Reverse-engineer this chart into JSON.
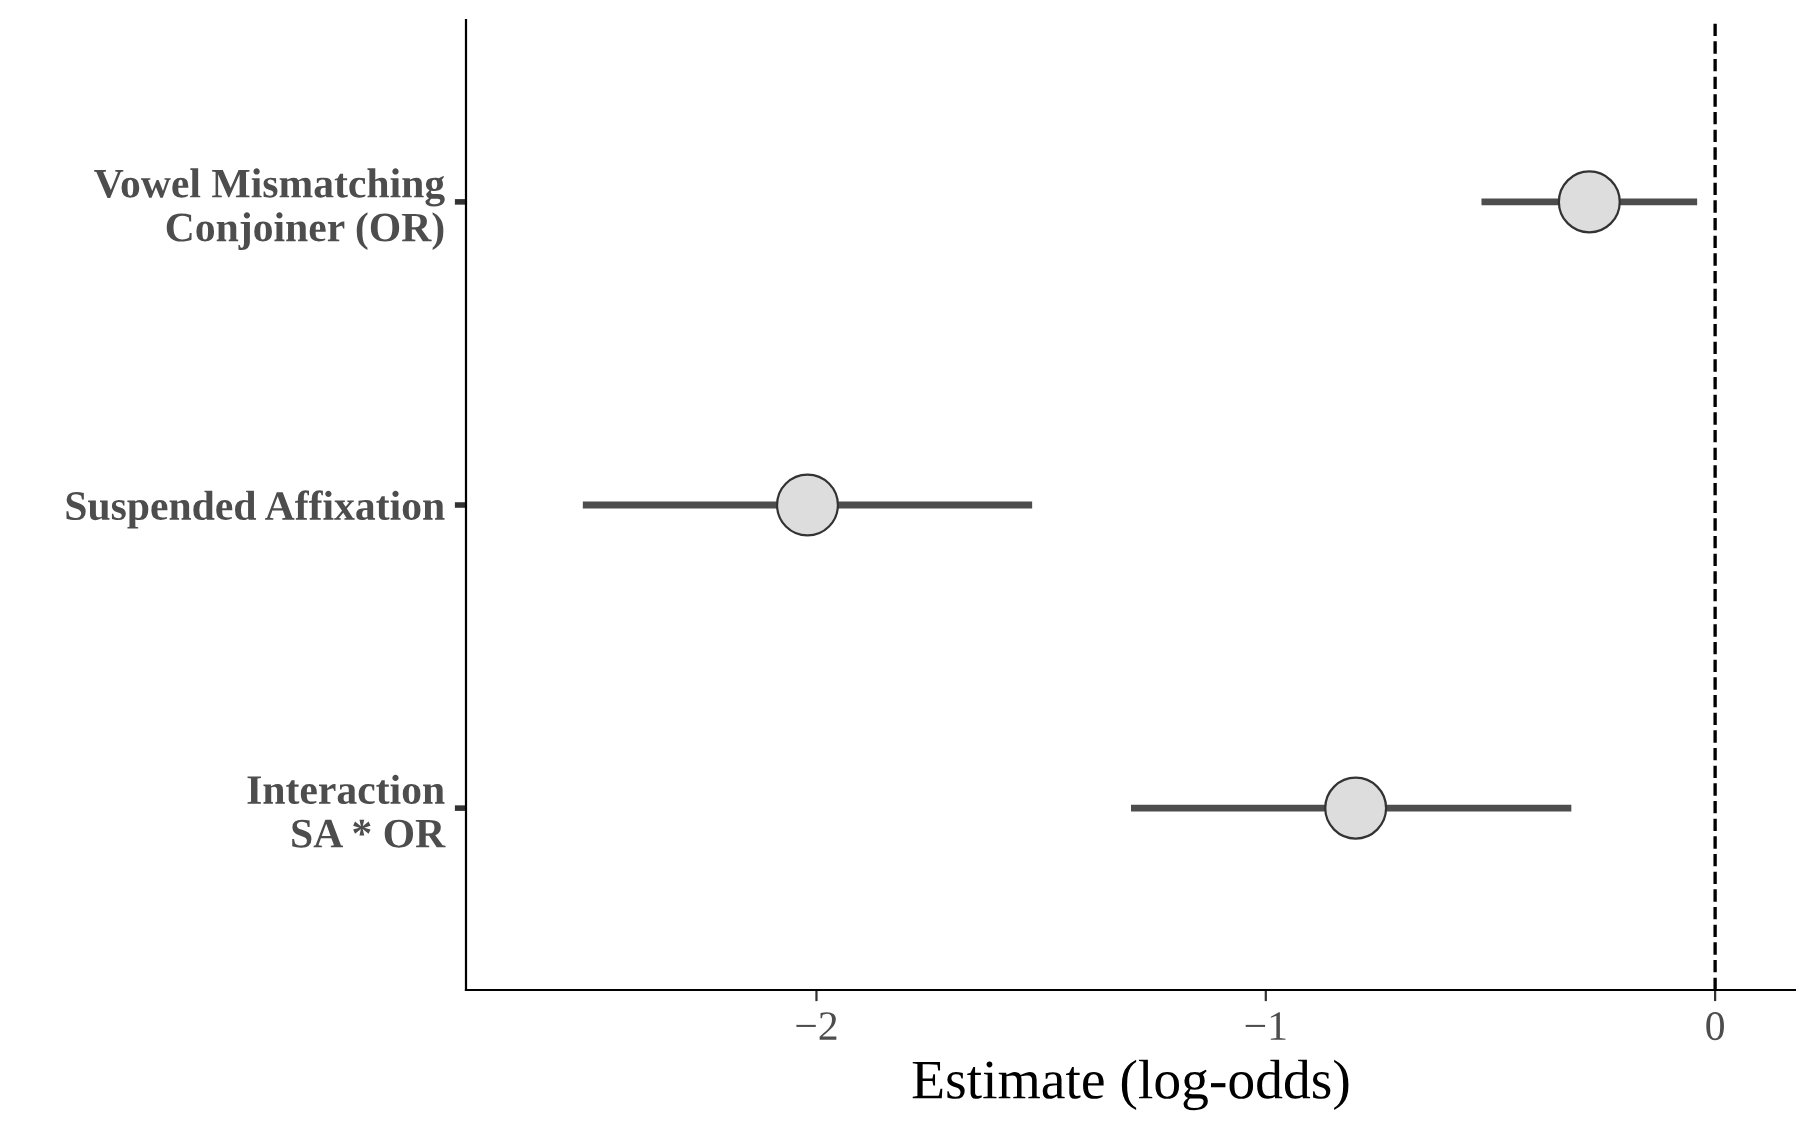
{
  "chart_data": {
    "type": "scatter",
    "orientation": "horizontal",
    "categories": [
      "Vowel Mismatching\nConjoiner (OR)",
      "Suspended Affixation",
      "Interaction\nSA * OR"
    ],
    "values": [
      -0.28,
      -2.02,
      -0.8
    ],
    "errors": [
      [
        -0.52,
        -0.04
      ],
      [
        -2.52,
        -1.52
      ],
      [
        -1.3,
        -0.32
      ]
    ],
    "color": "#dddddd",
    "marker": "circle",
    "xlabel": "Estimate (log-odds)",
    "xlim": [
      -2.78,
      0.18
    ],
    "xticks": [
      -2,
      -1,
      0
    ],
    "ref_lines": [
      {
        "axis": "x",
        "value": 0,
        "color": "#000000",
        "line_style": "dashed"
      }
    ],
    "grid": false,
    "legend": false
  }
}
